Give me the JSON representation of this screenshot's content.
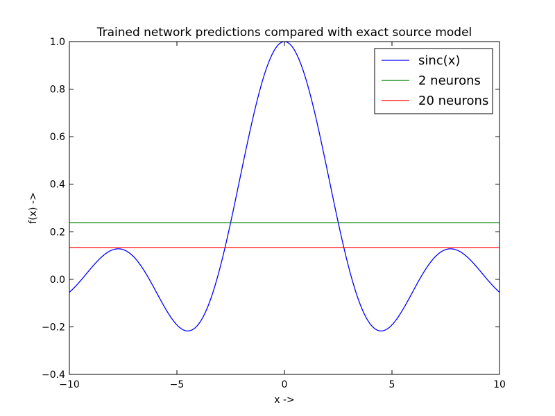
{
  "chart_data": {
    "type": "line",
    "title": "Trained network predictions compared with exact source model",
    "xlabel": "x ->",
    "ylabel": "f(x) ->",
    "xlim": [
      -10,
      10
    ],
    "ylim": [
      -0.4,
      1.0
    ],
    "xticks": [
      -10,
      -5,
      0,
      5,
      10
    ],
    "xtick_labels": [
      "−10",
      "−5",
      "0",
      "5",
      "10"
    ],
    "yticks": [
      -0.4,
      -0.2,
      0.0,
      0.2,
      0.4,
      0.6,
      0.8,
      1.0
    ],
    "ytick_labels": [
      "−0.4",
      "−0.2",
      "0.0",
      "0.2",
      "0.4",
      "0.6",
      "0.8",
      "1.0"
    ],
    "grid": false,
    "legend_position": "top-right",
    "series": [
      {
        "name": "sinc(x)",
        "color": "#0000ff",
        "x": [
          -10.0,
          -9.5,
          -9.0,
          -8.5,
          -8.0,
          -7.5,
          -7.0,
          -6.5,
          -6.0,
          -5.5,
          -5.0,
          -4.5,
          -4.0,
          -3.5,
          -3.0,
          -2.5,
          -2.0,
          -1.5,
          -1.0,
          -0.5,
          0.0,
          0.5,
          1.0,
          1.5,
          2.0,
          2.5,
          3.0,
          3.5,
          4.0,
          4.5,
          5.0,
          5.5,
          6.0,
          6.5,
          7.0,
          7.5,
          8.0,
          8.5,
          9.0,
          9.5,
          10.0
        ],
        "y": [
          -0.054,
          0.008,
          0.046,
          0.094,
          0.124,
          0.125,
          0.094,
          0.033,
          -0.047,
          -0.128,
          -0.192,
          -0.217,
          -0.189,
          -0.1,
          0.047,
          0.239,
          0.455,
          0.665,
          0.841,
          0.959,
          1.0,
          0.959,
          0.841,
          0.665,
          0.455,
          0.239,
          0.047,
          -0.1,
          -0.189,
          -0.217,
          -0.192,
          -0.128,
          -0.047,
          0.033,
          0.094,
          0.125,
          0.124,
          0.094,
          0.046,
          0.008,
          -0.054
        ]
      },
      {
        "name": "2 neurons",
        "color": "#008000",
        "x": [
          -10,
          10
        ],
        "y": [
          0.238,
          0.238
        ]
      },
      {
        "name": "20 neurons",
        "color": "#ff0000",
        "x": [
          -10,
          10
        ],
        "y": [
          0.133,
          0.133
        ]
      }
    ]
  }
}
